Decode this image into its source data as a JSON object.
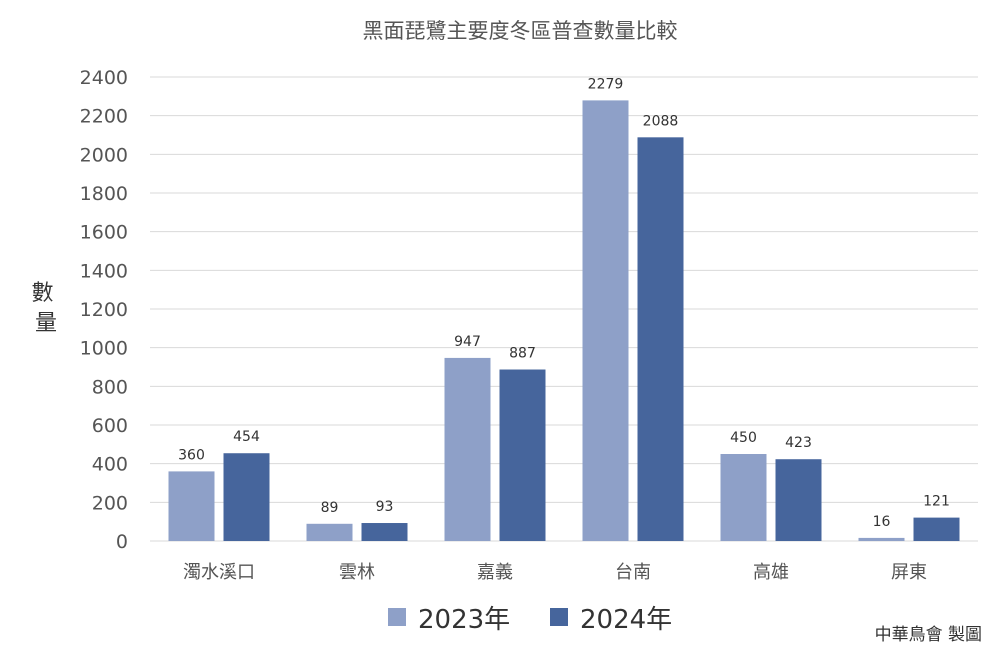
{
  "chart_data": {
    "type": "bar",
    "title": "黑面琵鷺主要度冬區普查數量比較",
    "ylabel": "數量",
    "xlabel": "",
    "categories": [
      "濁水溪口",
      "雲林",
      "嘉義",
      "台南",
      "高雄",
      "屏東"
    ],
    "series": [
      {
        "name": "2023年",
        "color": "#8ea0c8",
        "values": [
          360,
          89,
          947,
          2279,
          450,
          16
        ]
      },
      {
        "name": "2024年",
        "color": "#46659c",
        "values": [
          454,
          93,
          887,
          2088,
          423,
          121
        ]
      }
    ],
    "ylim": [
      0,
      2400
    ],
    "yticks": [
      0,
      200,
      400,
      600,
      800,
      1000,
      1200,
      1400,
      1600,
      1800,
      2000,
      2200,
      2400
    ],
    "grid": true,
    "legend_position": "bottom-center"
  },
  "credit": "中華鳥會 製圖"
}
